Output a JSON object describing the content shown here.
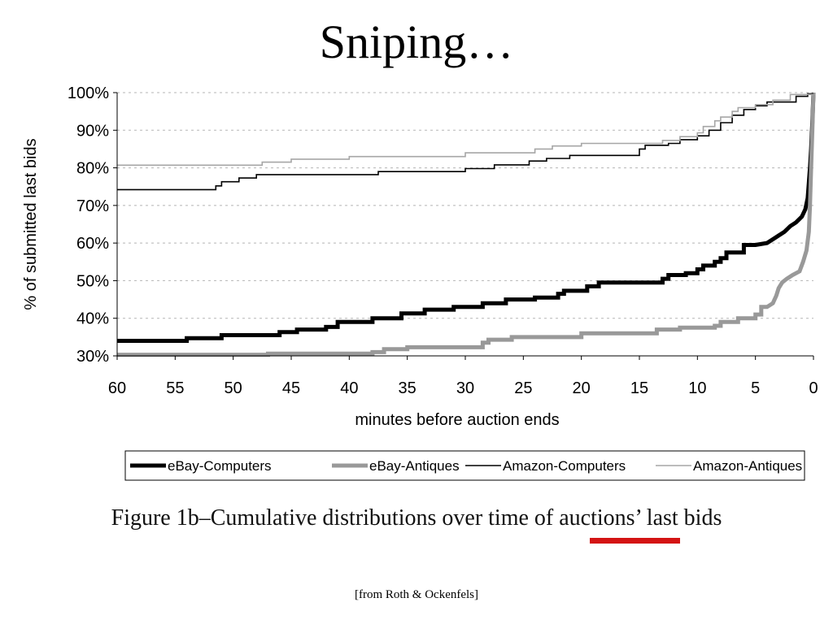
{
  "slide": {
    "title": "Sniping…",
    "caption": "Figure 1b–Cumulative distributions over time of auctions’ last bids",
    "source": "[from Roth & Ockenfels]",
    "underline_color": "#d41414"
  },
  "chart_data": {
    "type": "line",
    "xlabel": "minutes before auction ends",
    "ylabel": "% of submitted last bids",
    "xlim": [
      60,
      0
    ],
    "ylim": [
      30,
      100
    ],
    "x_reversed": true,
    "xticks": [
      60,
      55,
      50,
      45,
      40,
      35,
      30,
      25,
      20,
      15,
      10,
      5,
      0
    ],
    "yticks": [
      30,
      40,
      50,
      60,
      70,
      80,
      90,
      100
    ],
    "ytick_labels": [
      "30%",
      "40%",
      "50%",
      "60%",
      "70%",
      "80%",
      "90%",
      "100%"
    ],
    "grid": "horizontal-dashed",
    "legend_position": "bottom",
    "series": [
      {
        "name": "eBay-Computers",
        "color": "#000000",
        "width": 5,
        "points": [
          [
            60,
            34
          ],
          [
            54,
            34
          ],
          [
            54,
            34.7
          ],
          [
            51,
            34.7
          ],
          [
            51,
            35.5
          ],
          [
            46,
            35.5
          ],
          [
            46,
            36.3
          ],
          [
            44.5,
            36.3
          ],
          [
            44.5,
            37
          ],
          [
            42,
            37
          ],
          [
            42,
            37.7
          ],
          [
            41,
            37.7
          ],
          [
            41,
            39
          ],
          [
            38,
            39
          ],
          [
            38,
            40
          ],
          [
            35.5,
            40
          ],
          [
            35.5,
            41.3
          ],
          [
            33.5,
            41.3
          ],
          [
            33.5,
            42.3
          ],
          [
            31,
            42.3
          ],
          [
            31,
            43
          ],
          [
            28.5,
            43
          ],
          [
            28.5,
            44
          ],
          [
            26.5,
            44
          ],
          [
            26.5,
            45
          ],
          [
            24,
            45
          ],
          [
            24,
            45.5
          ],
          [
            22,
            45.5
          ],
          [
            22,
            46.5
          ],
          [
            21.5,
            46.5
          ],
          [
            21.5,
            47.3
          ],
          [
            19.5,
            47.3
          ],
          [
            19.5,
            48.5
          ],
          [
            18.5,
            48.5
          ],
          [
            18.5,
            49.5
          ],
          [
            17.5,
            49.5
          ],
          [
            13,
            49.5
          ],
          [
            13,
            50.5
          ],
          [
            12.5,
            50.5
          ],
          [
            12.5,
            51.5
          ],
          [
            11,
            51.5
          ],
          [
            11,
            52
          ],
          [
            10,
            52
          ],
          [
            10,
            53
          ],
          [
            9.5,
            53
          ],
          [
            9.5,
            54
          ],
          [
            8.5,
            54
          ],
          [
            8.5,
            55
          ],
          [
            8,
            55
          ],
          [
            8,
            56
          ],
          [
            7.5,
            56
          ],
          [
            7.5,
            57.5
          ],
          [
            6,
            57.5
          ],
          [
            6,
            59.5
          ],
          [
            5,
            59.5
          ],
          [
            4,
            60
          ],
          [
            3.5,
            61
          ],
          [
            3,
            62
          ],
          [
            2.5,
            63
          ],
          [
            2,
            64.5
          ],
          [
            1.5,
            65.5
          ],
          [
            1,
            67
          ],
          [
            0.7,
            69
          ],
          [
            0.5,
            72
          ],
          [
            0.4,
            76
          ],
          [
            0.3,
            80
          ],
          [
            0.2,
            85
          ],
          [
            0.1,
            92
          ],
          [
            0,
            100
          ]
        ]
      },
      {
        "name": "eBay-Antiques",
        "color": "#999999",
        "width": 5,
        "points": [
          [
            60,
            30.3
          ],
          [
            47,
            30.3
          ],
          [
            47,
            30.6
          ],
          [
            38,
            30.6
          ],
          [
            38,
            31
          ],
          [
            37,
            31
          ],
          [
            37,
            31.8
          ],
          [
            35,
            31.8
          ],
          [
            35,
            32.3
          ],
          [
            28.5,
            32.3
          ],
          [
            28.5,
            33.5
          ],
          [
            28,
            33.5
          ],
          [
            28,
            34.3
          ],
          [
            26,
            34.3
          ],
          [
            26,
            35
          ],
          [
            20,
            35
          ],
          [
            20,
            36
          ],
          [
            13.5,
            36
          ],
          [
            13.5,
            37
          ],
          [
            11.5,
            37
          ],
          [
            11.5,
            37.5
          ],
          [
            8.5,
            37.5
          ],
          [
            8.5,
            38
          ],
          [
            8,
            38
          ],
          [
            8,
            39
          ],
          [
            6.5,
            39
          ],
          [
            6.5,
            40
          ],
          [
            5,
            40
          ],
          [
            5,
            41
          ],
          [
            4.5,
            41
          ],
          [
            4.5,
            43
          ],
          [
            4,
            43
          ],
          [
            3.5,
            44
          ],
          [
            3.2,
            46
          ],
          [
            3,
            48
          ],
          [
            2.7,
            49.5
          ],
          [
            2.3,
            50.5
          ],
          [
            1.8,
            51.5
          ],
          [
            1.2,
            52.5
          ],
          [
            0.9,
            55
          ],
          [
            0.6,
            58
          ],
          [
            0.4,
            63
          ],
          [
            0.3,
            70
          ],
          [
            0.2,
            80
          ],
          [
            0.1,
            90
          ],
          [
            0,
            100
          ]
        ]
      },
      {
        "name": "Amazon-Computers",
        "color": "#000000",
        "width": 1.6,
        "points": [
          [
            60,
            74.2
          ],
          [
            51.5,
            74.2
          ],
          [
            51.5,
            75.2
          ],
          [
            51,
            75.2
          ],
          [
            51,
            76.3
          ],
          [
            49.5,
            76.3
          ],
          [
            49.5,
            77.3
          ],
          [
            48,
            77.3
          ],
          [
            48,
            78.2
          ],
          [
            37.5,
            78.2
          ],
          [
            37.5,
            79
          ],
          [
            30,
            79
          ],
          [
            30,
            79.8
          ],
          [
            27.5,
            79.8
          ],
          [
            27.5,
            80.8
          ],
          [
            24.5,
            80.8
          ],
          [
            24.5,
            81.8
          ],
          [
            23,
            81.8
          ],
          [
            23,
            82.5
          ],
          [
            21,
            82.5
          ],
          [
            21,
            83.3
          ],
          [
            15,
            83.3
          ],
          [
            15,
            85
          ],
          [
            14.5,
            85
          ],
          [
            14.5,
            86
          ],
          [
            12.5,
            86
          ],
          [
            12.5,
            86.5
          ],
          [
            11.5,
            86.5
          ],
          [
            11.5,
            87.5
          ],
          [
            10,
            87.5
          ],
          [
            10,
            88.5
          ],
          [
            9,
            88.5
          ],
          [
            9,
            90
          ],
          [
            8,
            90
          ],
          [
            8,
            92
          ],
          [
            7,
            92
          ],
          [
            7,
            94
          ],
          [
            6,
            94
          ],
          [
            6,
            95.5
          ],
          [
            5,
            95.5
          ],
          [
            5,
            96.5
          ],
          [
            4,
            96.5
          ],
          [
            4,
            97.5
          ],
          [
            1.5,
            97.5
          ],
          [
            1.5,
            99
          ],
          [
            0.5,
            99
          ],
          [
            0.5,
            99.7
          ],
          [
            0,
            99.7
          ]
        ]
      },
      {
        "name": "Amazon-Antiques",
        "color": "#a6a6a6",
        "width": 1.6,
        "points": [
          [
            60,
            80.7
          ],
          [
            47.5,
            80.7
          ],
          [
            47.5,
            81.5
          ],
          [
            45,
            81.5
          ],
          [
            45,
            82.3
          ],
          [
            40,
            82.3
          ],
          [
            40,
            83
          ],
          [
            30,
            83
          ],
          [
            30,
            84
          ],
          [
            24,
            84
          ],
          [
            24,
            85
          ],
          [
            22.5,
            85
          ],
          [
            22.5,
            85.8
          ],
          [
            20,
            85.8
          ],
          [
            20,
            86.5
          ],
          [
            13,
            86.5
          ],
          [
            13,
            87.3
          ],
          [
            11.5,
            87.3
          ],
          [
            11.5,
            88.3
          ],
          [
            10,
            88.3
          ],
          [
            10,
            89.3
          ],
          [
            9.5,
            89.3
          ],
          [
            9.5,
            91
          ],
          [
            8.5,
            91
          ],
          [
            8.5,
            92.5
          ],
          [
            8,
            92.5
          ],
          [
            8,
            93.5
          ],
          [
            7,
            93.5
          ],
          [
            7,
            95
          ],
          [
            6.5,
            95
          ],
          [
            6.5,
            96
          ],
          [
            5,
            96
          ],
          [
            5,
            96.8
          ],
          [
            3.5,
            96.8
          ],
          [
            3.5,
            98
          ],
          [
            2,
            98
          ],
          [
            2,
            99.5
          ],
          [
            0,
            99.5
          ]
        ]
      }
    ]
  }
}
